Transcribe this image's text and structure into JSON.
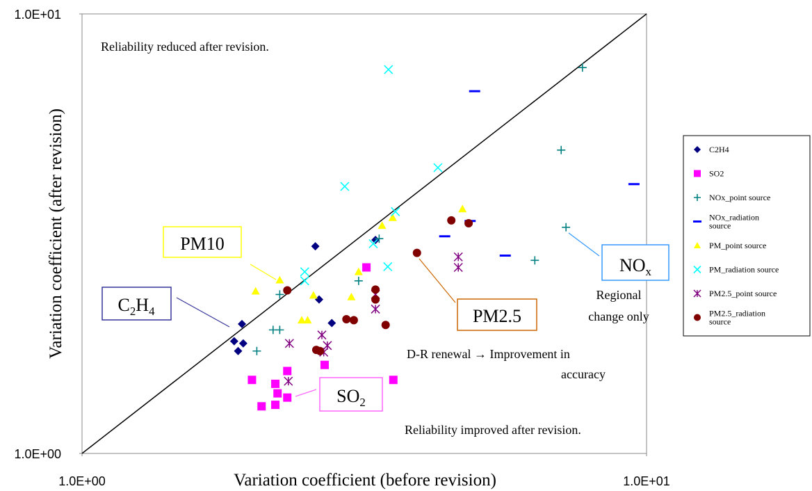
{
  "chart_data": {
    "type": "scatter",
    "x_label": "Variation coefficient (before revision)",
    "y_label": "Variation coefficient (after revision)",
    "xlim": [
      1,
      10
    ],
    "ylim": [
      1,
      10
    ],
    "xticks": [
      {
        "value": 1,
        "label": "1.0E+00"
      },
      {
        "value": 10,
        "label": "1.0E+01"
      }
    ],
    "yticks": [
      {
        "value": 1,
        "label": "1.0E+00"
      },
      {
        "value": 10,
        "label": "1.0E+01"
      }
    ],
    "log_x": true,
    "log_y": true,
    "grid": false,
    "legend": "right",
    "diagonal": true,
    "series": [
      {
        "name": "C2H4",
        "color": "#000080",
        "marker": "diamond",
        "x": [
          1.86,
          1.92,
          1.93,
          1.89,
          2.59,
          2.63,
          2.77,
          3.31
        ],
        "values": [
          1.8,
          1.97,
          1.78,
          1.71,
          2.96,
          2.24,
          1.98,
          3.06
        ]
      },
      {
        "name": "SO2",
        "color": "#ff00ff",
        "marker": "square",
        "x": [
          2.0,
          2.08,
          2.2,
          2.22,
          2.2,
          2.31,
          2.31,
          2.69,
          3.56,
          3.19
        ],
        "values": [
          1.47,
          1.28,
          1.44,
          1.37,
          1.29,
          1.34,
          1.54,
          1.59,
          1.47,
          2.65
        ]
      },
      {
        "name": "NOx_point source",
        "color": "#008080",
        "marker": "plus",
        "x": [
          7.7,
          7.06,
          7.2,
          6.34,
          3.36,
          3.09,
          2.24,
          2.18,
          2.24,
          2.04
        ],
        "values": [
          7.55,
          4.9,
          3.27,
          2.75,
          3.08,
          2.47,
          2.3,
          1.91,
          1.91,
          1.71
        ]
      },
      {
        "name": "NOx_radiation source",
        "color": "#0000ff",
        "marker": "dash",
        "x": [
          4.96,
          9.5,
          4.87,
          4.39,
          5.62
        ],
        "values": [
          6.67,
          4.1,
          3.38,
          3.12,
          2.82
        ]
      },
      {
        "name": "PM_point source",
        "color": "#ffff00",
        "marker": "triangle",
        "x": [
          4.72,
          3.55,
          3.4,
          3.09,
          3.0,
          2.24,
          2.03,
          2.57,
          2.45,
          2.51
        ],
        "values": [
          3.6,
          3.44,
          3.3,
          2.59,
          2.27,
          2.48,
          2.34,
          2.29,
          2.01,
          2.01
        ]
      },
      {
        "name": "PM_radiation source",
        "color": "#00ffff",
        "marker": "x",
        "x": [
          3.49,
          4.27,
          2.92,
          3.59,
          3.28,
          3.48,
          2.48,
          2.48
        ],
        "values": [
          7.47,
          4.47,
          4.05,
          3.55,
          3.0,
          2.66,
          2.59,
          2.47
        ]
      },
      {
        "name": "PM2.5_point source",
        "color": "#800080",
        "marker": "star",
        "x": [
          4.64,
          4.64,
          3.31,
          3.31,
          2.66,
          2.72,
          2.68,
          2.33,
          2.32
        ],
        "values": [
          2.8,
          2.65,
          2.3,
          2.13,
          1.86,
          1.76,
          1.7,
          1.78,
          1.46
        ]
      },
      {
        "name": "PM2.5_radiation source",
        "color": "#800000",
        "marker": "circle",
        "x": [
          4.51,
          4.84,
          3.92,
          3.31,
          3.31,
          2.94,
          3.03,
          3.45,
          2.31,
          2.6,
          2.64
        ],
        "values": [
          3.39,
          3.34,
          2.86,
          2.36,
          2.24,
          2.02,
          2.01,
          1.96,
          2.35,
          1.72,
          1.71
        ]
      }
    ],
    "annotations": [
      {
        "parts": [
          {
            "t": "PM10"
          }
        ],
        "color": "#ffff00",
        "box": true
      },
      {
        "parts": [
          {
            "t": "C"
          },
          {
            "t": "2",
            "sub": true
          },
          {
            "t": "H"
          },
          {
            "t": "4",
            "sub": true
          }
        ],
        "color": "#333399",
        "box": true
      },
      {
        "parts": [
          {
            "t": "SO"
          },
          {
            "t": "2",
            "sub": true
          }
        ],
        "color": "#ff66ff",
        "box": true
      },
      {
        "parts": [
          {
            "t": "PM2.5"
          }
        ],
        "color": "#cc6600",
        "box": true
      },
      {
        "parts": [
          {
            "t": "NO"
          },
          {
            "t": "x",
            "sub": true
          }
        ],
        "color": "#3399ff",
        "box": true
      },
      {
        "parts": [
          {
            "t": "Reliability reduced after revision."
          }
        ]
      },
      {
        "parts": [
          {
            "t": "Regional"
          }
        ]
      },
      {
        "parts": [
          {
            "t": "change only"
          }
        ]
      },
      {
        "parts": [
          {
            "t": "D-R renewal → Improvement in"
          }
        ]
      },
      {
        "parts": [
          {
            "t": "accuracy"
          }
        ]
      },
      {
        "parts": [
          {
            "t": "Reliability improved after revision."
          }
        ]
      }
    ]
  }
}
